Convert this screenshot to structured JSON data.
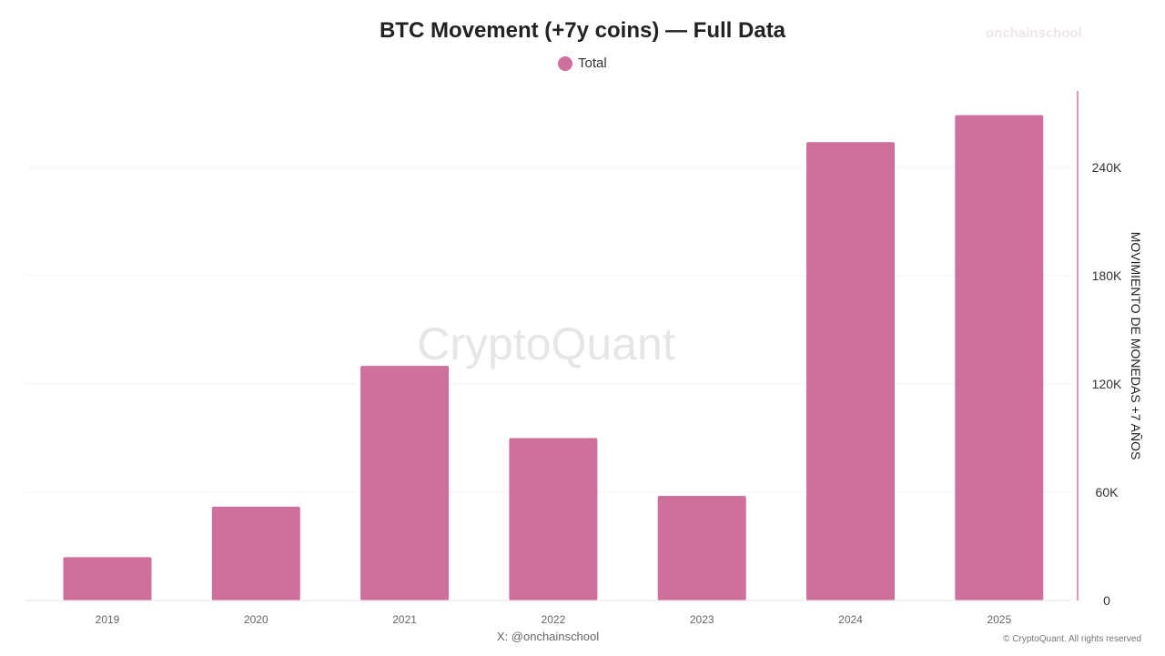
{
  "chart_data": {
    "type": "bar",
    "title": "BTC Movement (+7y coins) — Full Data",
    "categories": [
      "2019",
      "2020",
      "2021",
      "2022",
      "2023",
      "2024",
      "2025"
    ],
    "series": [
      {
        "name": "Total",
        "values": [
          24000,
          52000,
          130000,
          90000,
          58000,
          254000,
          269000
        ],
        "color": "#cf6f9b"
      }
    ],
    "ylabel": "MOVIMIENTO DE MONEDAS +7 AÑOS",
    "yticks": [
      0,
      60000,
      120000,
      180000,
      240000
    ],
    "ytick_labels": [
      "0",
      "60K",
      "120K",
      "180K",
      "240K"
    ],
    "ylim": [
      0,
      283000
    ],
    "y_axis_position": "right",
    "grid": true,
    "legend_position": "top-center"
  },
  "watermark": "CryptoQuant",
  "brand": "onchainschool",
  "footer": {
    "handle": "X: @onchainschool",
    "copyright": "© CryptoQuant. All rights reserved"
  }
}
